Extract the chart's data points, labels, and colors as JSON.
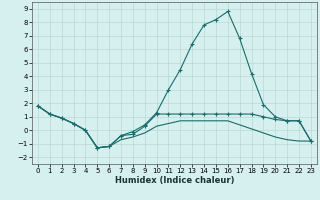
{
  "xlabel": "Humidex (Indice chaleur)",
  "bg_color": "#d6f0ef",
  "grid_color": "#b8d8d6",
  "line_color": "#1a6b6b",
  "xlim": [
    -0.5,
    23.5
  ],
  "ylim": [
    -2.5,
    9.5
  ],
  "xticks": [
    0,
    1,
    2,
    3,
    4,
    5,
    6,
    7,
    8,
    9,
    10,
    11,
    12,
    13,
    14,
    15,
    16,
    17,
    18,
    19,
    20,
    21,
    22,
    23
  ],
  "yticks": [
    -2,
    -1,
    0,
    1,
    2,
    3,
    4,
    5,
    6,
    7,
    8,
    9
  ],
  "line1_x": [
    0,
    1,
    2,
    3,
    4,
    5,
    6,
    7,
    8,
    9,
    10,
    11,
    12,
    13,
    14,
    15,
    16,
    17,
    18,
    19,
    20,
    21,
    22,
    23
  ],
  "line1_y": [
    1.8,
    1.2,
    0.9,
    0.5,
    0.0,
    -1.3,
    -1.2,
    -0.4,
    -0.3,
    0.3,
    1.2,
    1.2,
    1.2,
    1.2,
    1.2,
    1.2,
    1.2,
    1.2,
    1.2,
    1.0,
    0.8,
    0.7,
    0.7,
    -0.8
  ],
  "line2_x": [
    0,
    1,
    2,
    3,
    4,
    5,
    6,
    7,
    8,
    9,
    10,
    11,
    12,
    13,
    14,
    15,
    16,
    17,
    18,
    19,
    20,
    21,
    22,
    23
  ],
  "line2_y": [
    1.8,
    1.2,
    0.9,
    0.5,
    0.0,
    -1.3,
    -1.2,
    -0.4,
    -0.1,
    0.4,
    1.3,
    3.0,
    4.5,
    6.4,
    7.8,
    8.2,
    8.8,
    6.8,
    4.2,
    1.9,
    1.0,
    0.7,
    0.7,
    -0.8
  ],
  "line3_x": [
    0,
    1,
    2,
    3,
    4,
    5,
    6,
    7,
    8,
    9,
    10,
    11,
    12,
    13,
    14,
    15,
    16,
    17,
    18,
    19,
    20,
    21,
    22,
    23
  ],
  "line3_y": [
    1.8,
    1.2,
    0.9,
    0.5,
    0.0,
    -1.3,
    -1.2,
    -0.7,
    -0.5,
    -0.2,
    0.3,
    0.5,
    0.7,
    0.7,
    0.7,
    0.7,
    0.7,
    0.4,
    0.1,
    -0.2,
    -0.5,
    -0.7,
    -0.8,
    -0.8
  ]
}
